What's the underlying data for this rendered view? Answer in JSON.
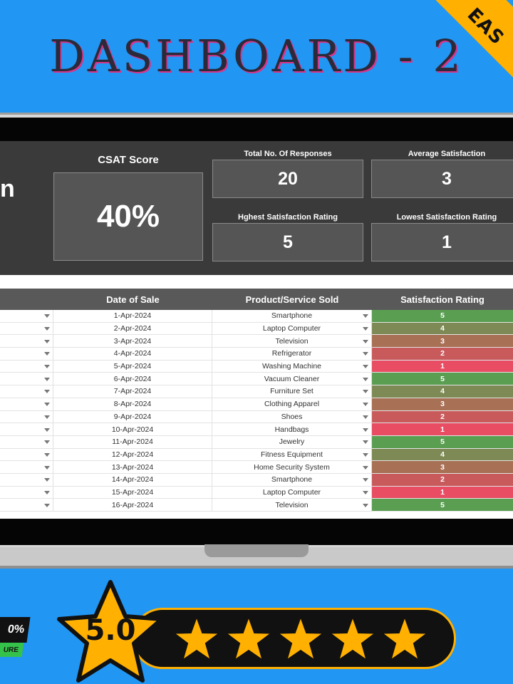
{
  "header": {
    "title": "DASHBOARD - 2",
    "ribbon_text": "EAS"
  },
  "kpis": {
    "edge_text": "n",
    "csat": {
      "label": "CSAT Score",
      "value": "40%"
    },
    "total_responses": {
      "label": "Total No. Of Responses",
      "value": "20"
    },
    "average_satisfaction": {
      "label": "Average Satisfaction",
      "value": "3"
    },
    "highest_rating": {
      "label": "Hghest Satisfaction Rating",
      "value": "5"
    },
    "lowest_rating": {
      "label": "Lowest Satisfaction Rating",
      "value": "1"
    }
  },
  "table": {
    "headers": [
      "",
      "Date of Sale",
      "Product/Service Sold",
      "Satisfaction Rating"
    ],
    "rows": [
      {
        "date": "1-Apr-2024",
        "product": "Smartphone",
        "rating": "5"
      },
      {
        "date": "2-Apr-2024",
        "product": "Laptop Computer",
        "rating": "4"
      },
      {
        "date": "3-Apr-2024",
        "product": "Television",
        "rating": "3"
      },
      {
        "date": "4-Apr-2024",
        "product": "Refrigerator",
        "rating": "2"
      },
      {
        "date": "5-Apr-2024",
        "product": "Washing Machine",
        "rating": "1"
      },
      {
        "date": "6-Apr-2024",
        "product": "Vacuum Cleaner",
        "rating": "5"
      },
      {
        "date": "7-Apr-2024",
        "product": "Furniture Set",
        "rating": "4"
      },
      {
        "date": "8-Apr-2024",
        "product": "Clothing Apparel",
        "rating": "3"
      },
      {
        "date": "9-Apr-2024",
        "product": "Shoes",
        "rating": "2"
      },
      {
        "date": "10-Apr-2024",
        "product": "Handbags",
        "rating": "1"
      },
      {
        "date": "11-Apr-2024",
        "product": "Jewelry",
        "rating": "5"
      },
      {
        "date": "12-Apr-2024",
        "product": "Fitness Equipment",
        "rating": "4"
      },
      {
        "date": "13-Apr-2024",
        "product": "Home Security System",
        "rating": "3"
      },
      {
        "date": "14-Apr-2024",
        "product": "Smartphone",
        "rating": "2"
      },
      {
        "date": "15-Apr-2024",
        "product": "Laptop Computer",
        "rating": "1"
      },
      {
        "date": "16-Apr-2024",
        "product": "Television",
        "rating": "5"
      }
    ],
    "rating_colors": {
      "5": "#5a9e52",
      "4": "#7e8a55",
      "3": "#a87055",
      "2": "#c95a5c",
      "1": "#e84d63"
    }
  },
  "footer": {
    "badge_top": "0%",
    "badge_bottom": "URE",
    "rating_value": "5.0",
    "star_count": 5,
    "star_color": "#ffb000",
    "accent_color": "#ffb000"
  }
}
